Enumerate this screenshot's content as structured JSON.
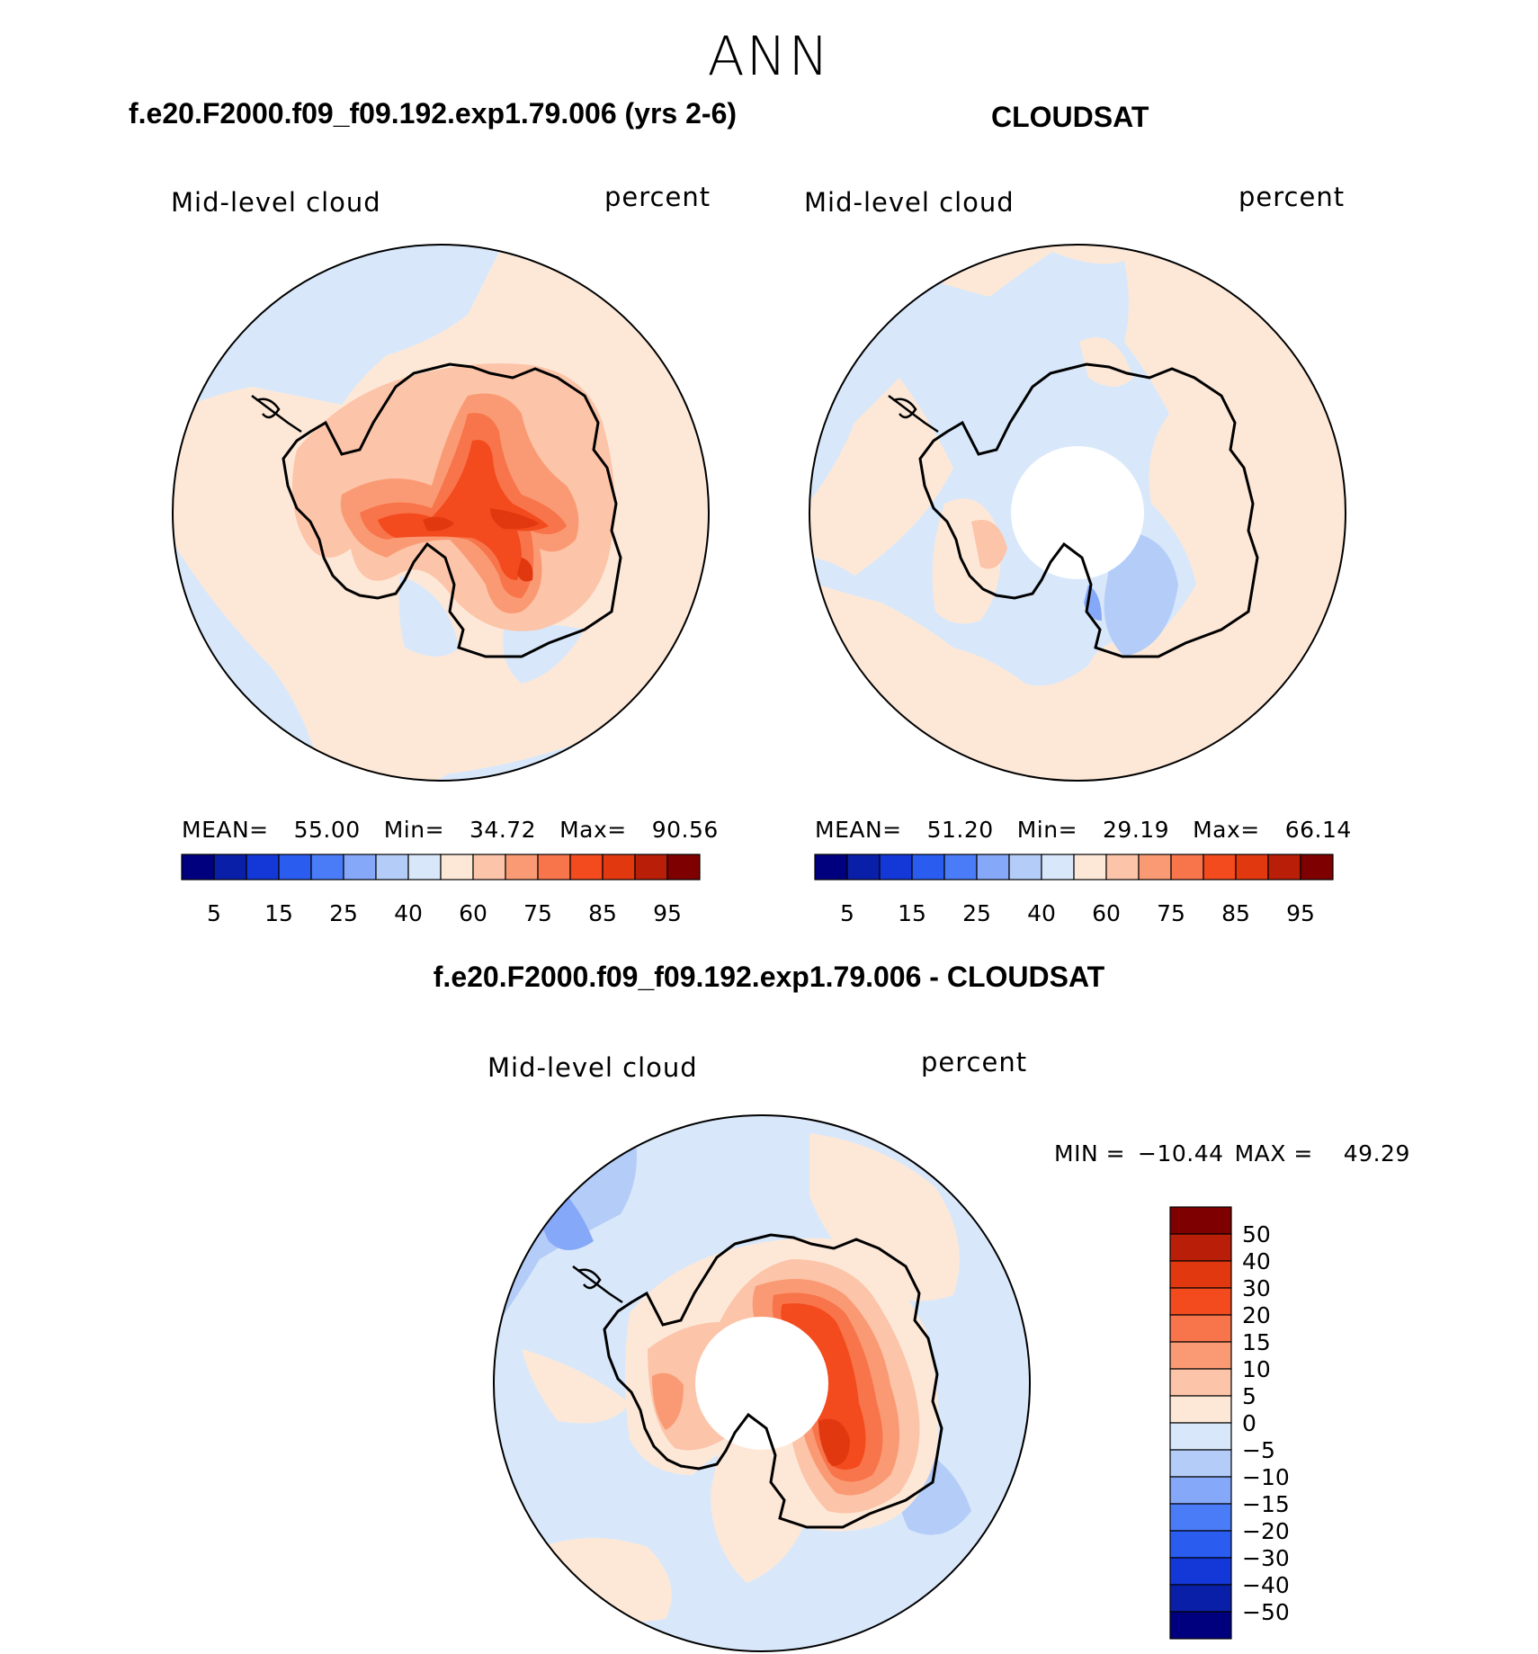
{
  "header": {
    "title": "ANN",
    "model_title": "f.e20.F2000.f09_f09.192.exp1.79.006 (yrs 2-6)",
    "obs_title": "CLOUDSAT",
    "diff_title": "f.e20.F2000.f09_f09.192.exp1.79.006 - CLOUDSAT"
  },
  "panels": {
    "model": {
      "variable": "Mid-level cloud",
      "units": "percent",
      "stats": {
        "mean_label": "MEAN=",
        "mean": "55.00",
        "min_label": "Min=",
        "min": "34.72",
        "max_label": "Max=",
        "max": "90.56"
      },
      "colorbar_ticks": [
        "5",
        "15",
        "25",
        "40",
        "60",
        "75",
        "85",
        "95"
      ]
    },
    "obs": {
      "variable": "Mid-level cloud",
      "units": "percent",
      "stats": {
        "mean_label": "MEAN=",
        "mean": "51.20",
        "min_label": "Min=",
        "min": "29.19",
        "max_label": "Max=",
        "max": "66.14"
      },
      "colorbar_ticks": [
        "5",
        "15",
        "25",
        "40",
        "60",
        "75",
        "85",
        "95"
      ]
    },
    "diff": {
      "variable": "Mid-level cloud",
      "units": "percent",
      "stats": {
        "min_label": "MIN =",
        "min": "−10.44",
        "max_label": "MAX =",
        "max": "49.29"
      },
      "colorbar_ticks": [
        "50",
        "40",
        "30",
        "20",
        "15",
        "10",
        "5",
        "0",
        "−5",
        "−10",
        "−15",
        "−20",
        "−30",
        "−40",
        "−50"
      ]
    }
  },
  "colors": {
    "abs_scale": [
      "#00007f",
      "#0a1fa8",
      "#1438d8",
      "#2a5cf0",
      "#4a7cf8",
      "#86a8f8",
      "#b4ccf8",
      "#d8e8fa",
      "#fde8d8",
      "#fcc4a8",
      "#fa9a74",
      "#f8744a",
      "#f34a1e",
      "#e23810",
      "#b81e08",
      "#7e0000"
    ],
    "diff_scale": [
      "#7e0000",
      "#b81e08",
      "#e23810",
      "#f34a1e",
      "#f8744a",
      "#fa9a74",
      "#fcc4a8",
      "#fde8d8",
      "#d8e8fa",
      "#b4ccf8",
      "#86a8f8",
      "#4a7cf8",
      "#2a5cf0",
      "#1438d8",
      "#0a1fa8",
      "#00007f"
    ],
    "light_blue": "#d8e8fa",
    "light_peach": "#fde8d8",
    "peach": "#fcc4a8",
    "salmon": "#fa9a74",
    "orange": "#f8744a",
    "red": "#f34a1e",
    "dark_red": "#e23810",
    "mid_blue": "#b4ccf8",
    "blue": "#86a8f8"
  },
  "chart_data": [
    {
      "type": "heatmap",
      "title": "f.e20.F2000.f09_f09.192.exp1.79.006 (yrs 2-6)",
      "variable": "Mid-level cloud",
      "units": "percent",
      "projection": "south polar stereographic",
      "mean": 55.0,
      "min": 34.72,
      "max": 90.56,
      "contour_levels": [
        5,
        10,
        15,
        20,
        25,
        30,
        40,
        50,
        60,
        70,
        75,
        80,
        85,
        90,
        95
      ]
    },
    {
      "type": "heatmap",
      "title": "CLOUDSAT",
      "variable": "Mid-level cloud",
      "units": "percent",
      "projection": "south polar stereographic",
      "mean": 51.2,
      "min": 29.19,
      "max": 66.14,
      "contour_levels": [
        5,
        10,
        15,
        20,
        25,
        30,
        40,
        50,
        60,
        70,
        75,
        80,
        85,
        90,
        95
      ]
    },
    {
      "type": "heatmap",
      "title": "f.e20.F2000.f09_f09.192.exp1.79.006 - CLOUDSAT",
      "variable": "Mid-level cloud",
      "units": "percent",
      "projection": "south polar stereographic",
      "min": -10.44,
      "max": 49.29,
      "contour_levels": [
        -50,
        -40,
        -30,
        -20,
        -15,
        -10,
        -5,
        0,
        5,
        10,
        15,
        20,
        30,
        40,
        50
      ]
    }
  ]
}
